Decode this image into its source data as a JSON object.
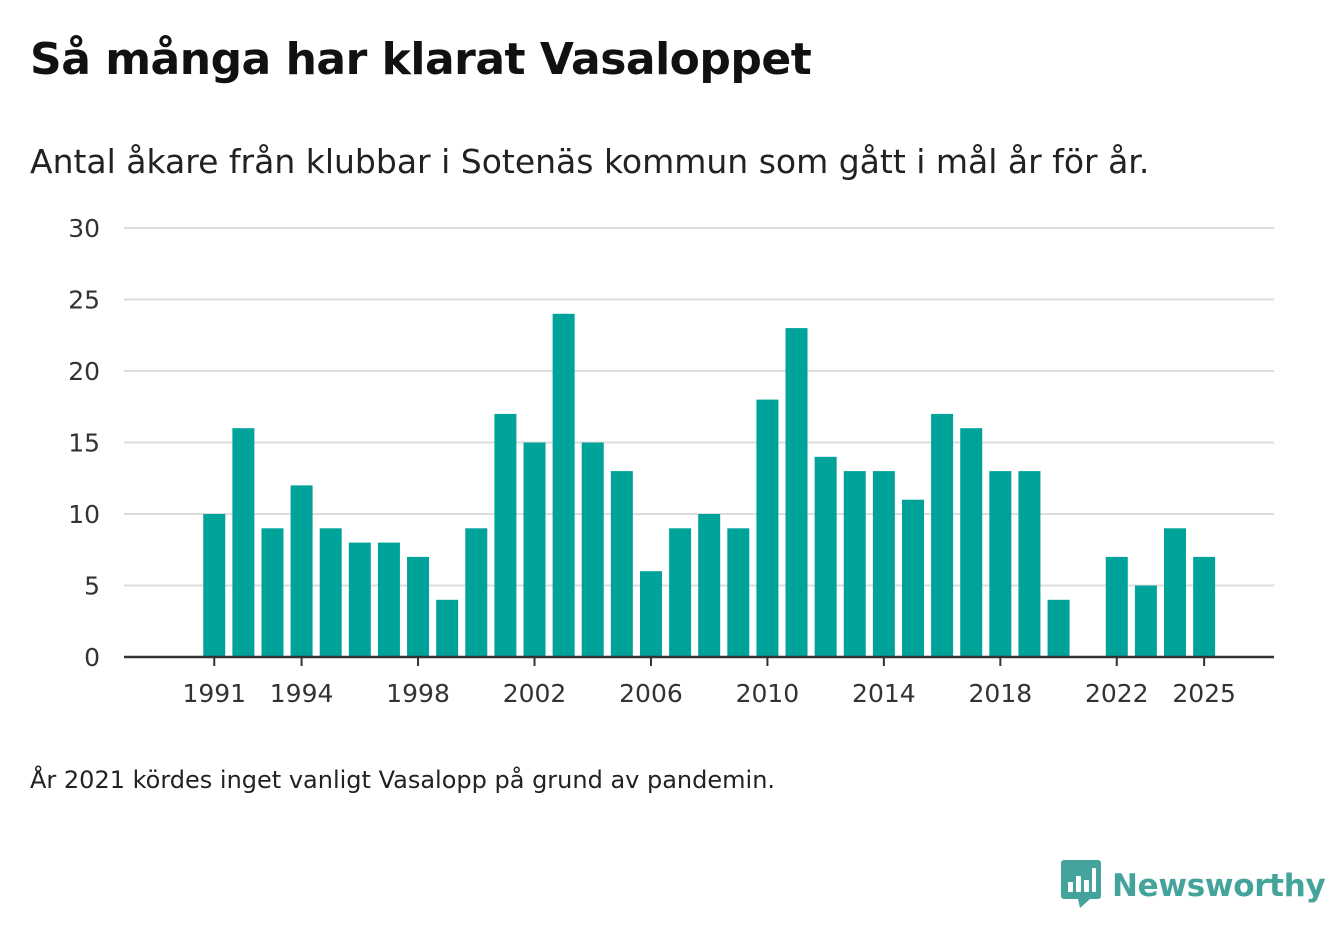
{
  "title": "Så många har klarat Vasaloppet",
  "subtitle": "Antal åkare från klubbar i Sotenäs kommun som gått i mål år för år.",
  "footnote": "År 2021 kördes inget vanligt Vasalopp på grund av pandemin.",
  "brand": {
    "name": "Newsworthy",
    "logo_icon": "newsworthy-logo-icon",
    "color": "#44a39a"
  },
  "colors": {
    "bar": "#00a39a",
    "grid": "#dddddd",
    "axis": "#333333"
  },
  "chart_data": {
    "type": "bar",
    "title": "Så många har klarat Vasaloppet",
    "xlabel": "",
    "ylabel": "",
    "ylim": [
      0,
      30
    ],
    "yticks": [
      0,
      5,
      10,
      15,
      20,
      25,
      30
    ],
    "xticks": [
      1991,
      1994,
      1998,
      2002,
      2006,
      2010,
      2014,
      2018,
      2022,
      2025
    ],
    "xlim": [
      1987.9,
      2027.4
    ],
    "grid": true,
    "categories": [
      1991,
      1992,
      1993,
      1994,
      1995,
      1996,
      1997,
      1998,
      1999,
      2000,
      2001,
      2002,
      2003,
      2004,
      2005,
      2006,
      2007,
      2008,
      2009,
      2010,
      2011,
      2012,
      2013,
      2014,
      2015,
      2016,
      2017,
      2018,
      2019,
      2020,
      2022,
      2023,
      2024,
      2025
    ],
    "values": [
      10,
      16,
      9,
      12,
      9,
      8,
      8,
      7,
      4,
      9,
      17,
      15,
      24,
      15,
      13,
      6,
      9,
      10,
      9,
      18,
      23,
      14,
      13,
      13,
      11,
      17,
      16,
      13,
      13,
      4,
      7,
      5,
      9,
      7
    ]
  }
}
